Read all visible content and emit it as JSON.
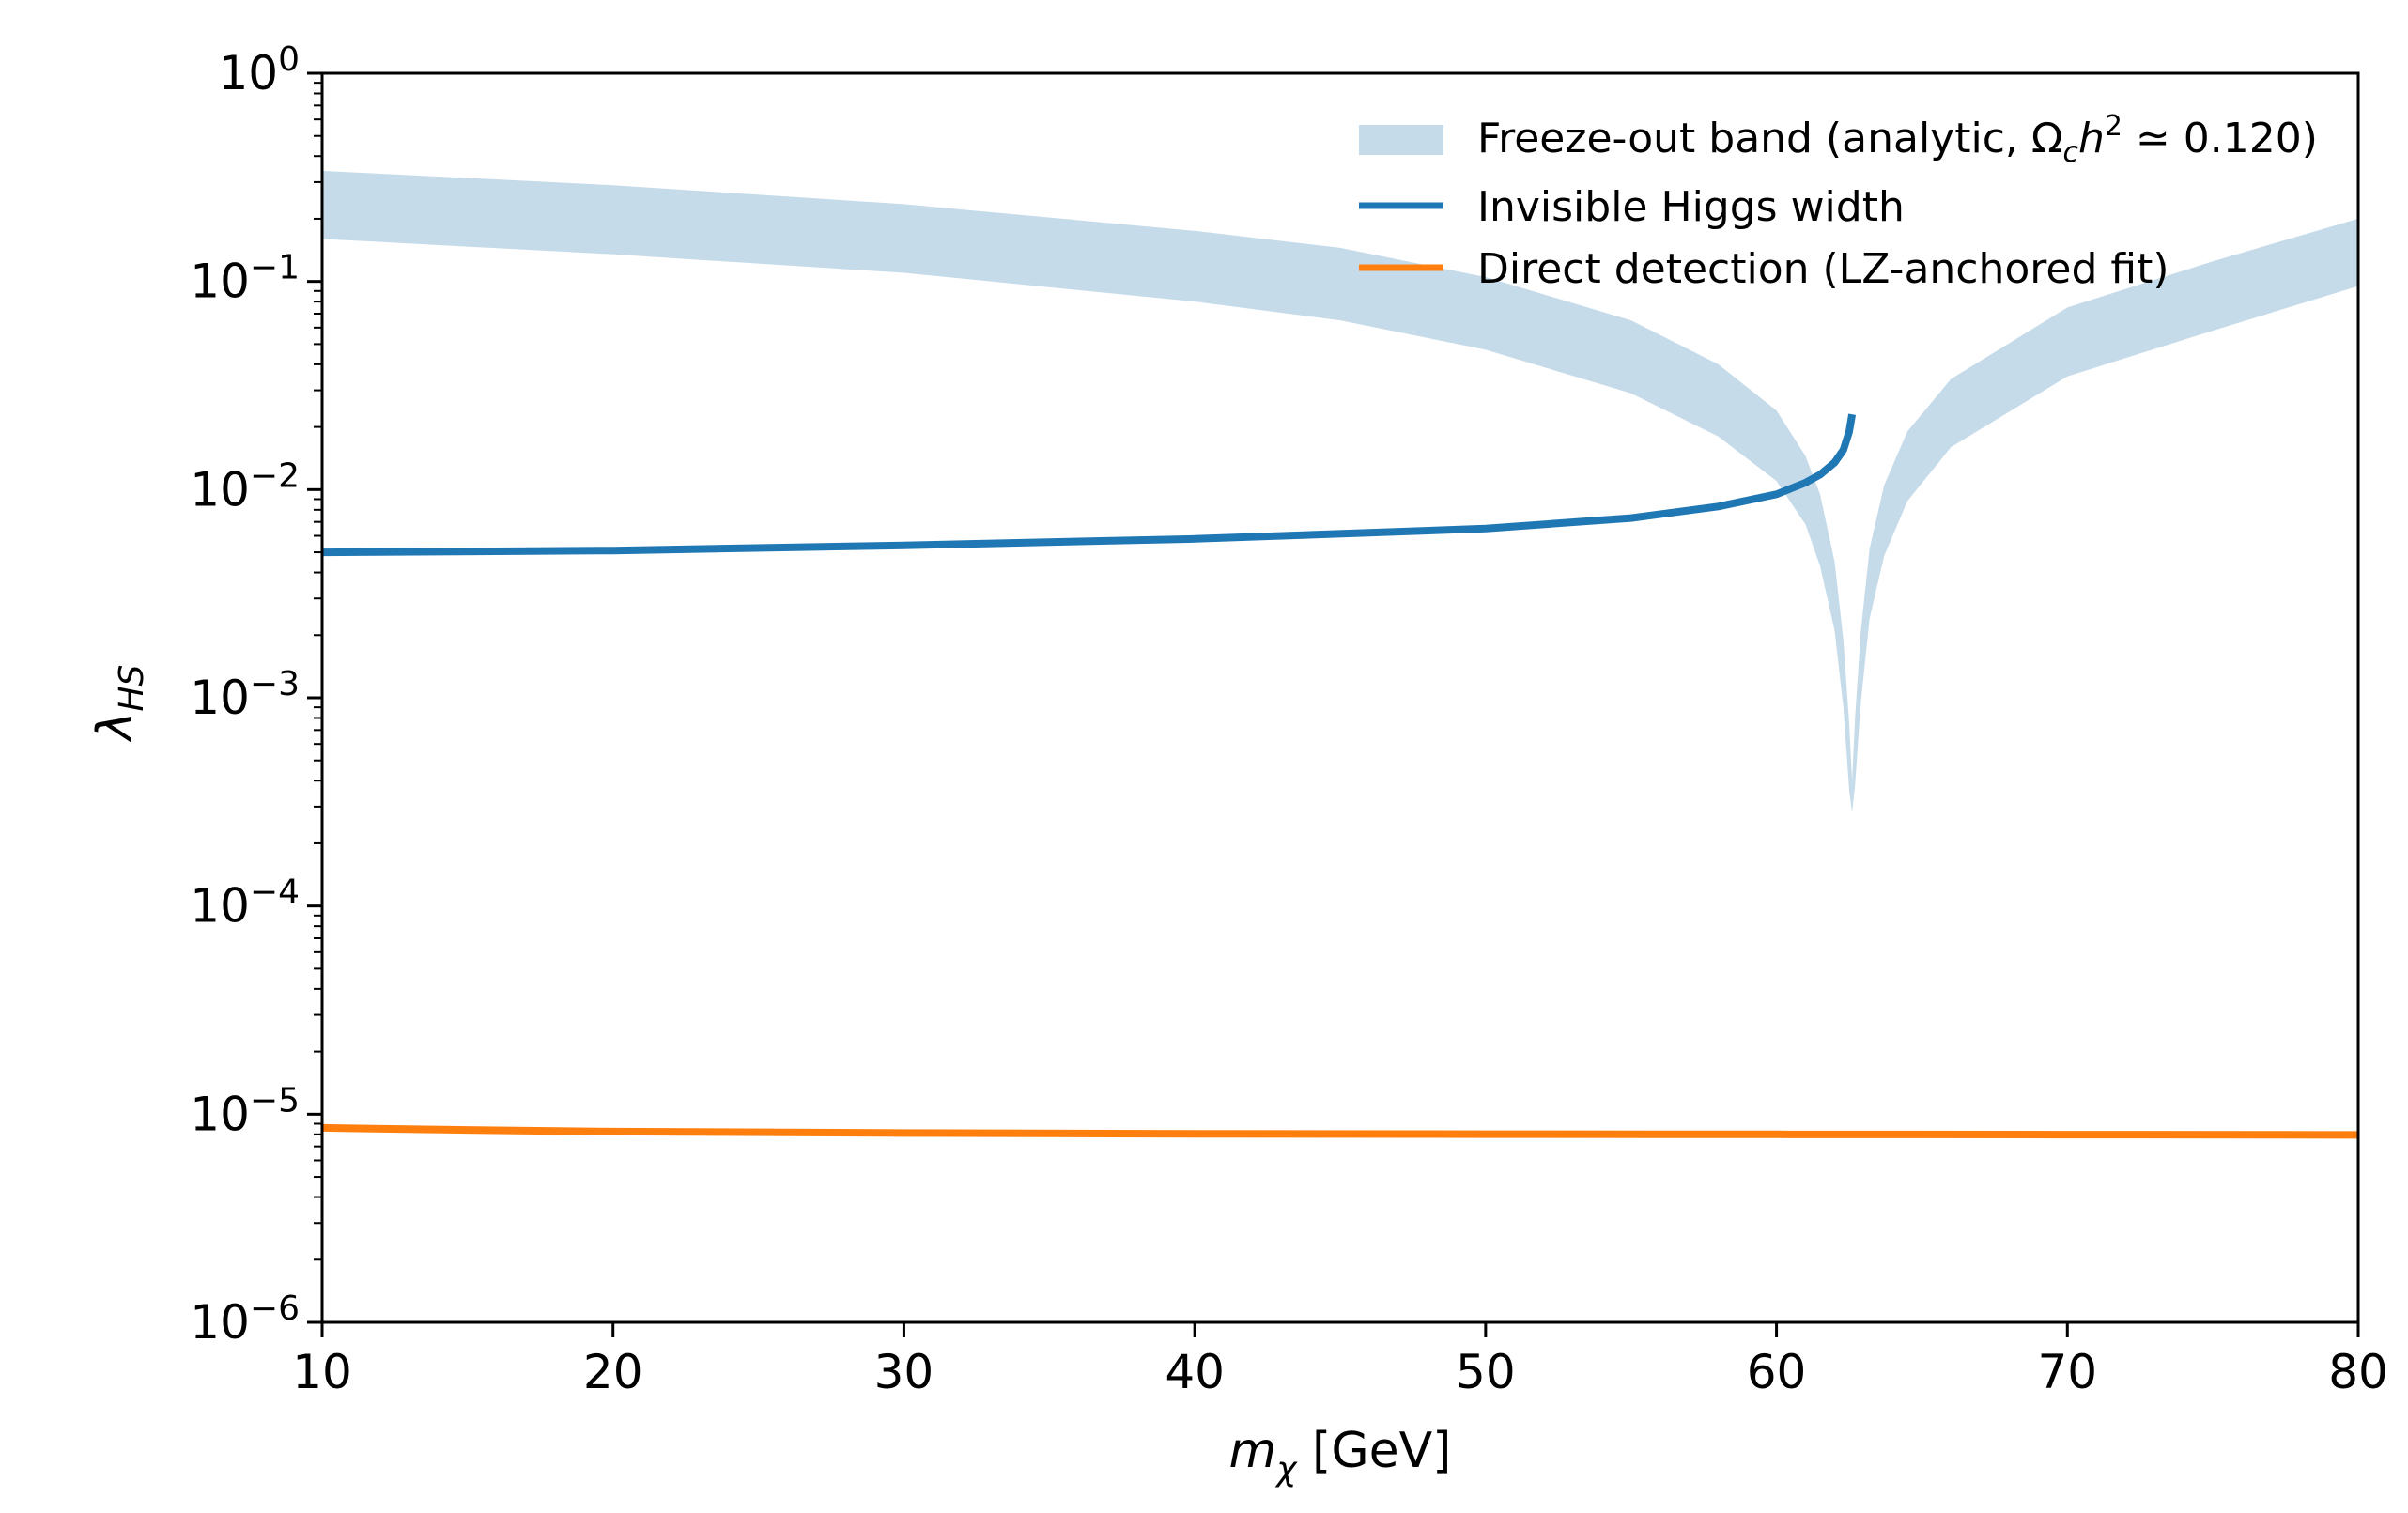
{
  "chart_data": {
    "type": "line",
    "xlabel": "m_χ [GeV]",
    "xlabel_base": "m",
    "xlabel_sub": "χ",
    "xlabel_unit": "[GeV]",
    "ylabel": "λ_HS",
    "ylabel_base": "λ",
    "ylabel_sub": "HS",
    "xlim": [
      10,
      80
    ],
    "ylim": [
      1e-06,
      1
    ],
    "yscale": "log",
    "grid": false,
    "legend_position": "top-right",
    "x_ticks": [
      10,
      20,
      30,
      40,
      50,
      60,
      70,
      80
    ],
    "y_ticks": [
      {
        "value": 1,
        "base": "10",
        "exp": "0"
      },
      {
        "value": 0.1,
        "base": "10",
        "exp": "−1"
      },
      {
        "value": 0.01,
        "base": "10",
        "exp": "−2"
      },
      {
        "value": 0.001,
        "base": "10",
        "exp": "−3"
      },
      {
        "value": 0.0001,
        "base": "10",
        "exp": "−4"
      },
      {
        "value": 1e-05,
        "base": "10",
        "exp": "−5"
      },
      {
        "value": 1e-06,
        "base": "10",
        "exp": "−6"
      }
    ],
    "series": [
      {
        "name": "Freeze-out band (analytic, Ω_c h^2 ≃ 0.120)",
        "kind": "band",
        "color": "#c6dbea",
        "resonance_x": 62.6,
        "x": [
          10,
          20,
          30,
          40,
          45,
          50,
          55,
          58,
          60,
          61,
          61.5,
          62,
          62.3,
          62.5,
          62.6,
          62.7,
          62.9,
          63.2,
          63.7,
          64.5,
          66,
          70,
          75,
          80
        ],
        "upper": [
          0.34,
          0.29,
          0.235,
          0.175,
          0.145,
          0.105,
          0.065,
          0.04,
          0.024,
          0.0145,
          0.0095,
          0.0045,
          0.0019,
          0.00075,
          0.0004,
          0.0008,
          0.0021,
          0.0052,
          0.0105,
          0.019,
          0.034,
          0.075,
          0.125,
          0.2
        ],
        "lower": [
          0.16,
          0.135,
          0.11,
          0.08,
          0.065,
          0.047,
          0.029,
          0.018,
          0.011,
          0.0068,
          0.0043,
          0.0021,
          0.0009,
          0.00036,
          0.00028,
          0.00038,
          0.00095,
          0.0024,
          0.0048,
          0.0088,
          0.016,
          0.035,
          0.058,
          0.095
        ]
      },
      {
        "name": "Invisible Higgs width",
        "kind": "line",
        "color": "#1f77b4",
        "x": [
          10,
          20,
          30,
          40,
          50,
          55,
          58,
          60,
          61,
          61.5,
          62,
          62.3,
          62.5,
          62.6
        ],
        "values": [
          0.005,
          0.0051,
          0.0054,
          0.0058,
          0.0065,
          0.0073,
          0.0083,
          0.0095,
          0.0108,
          0.0118,
          0.0135,
          0.0155,
          0.019,
          0.023
        ]
      },
      {
        "name": "Direct detection (LZ-anchored fit)",
        "kind": "line",
        "color": "#ff7f0e",
        "x": [
          10,
          15,
          20,
          30,
          40,
          50,
          60,
          70,
          80
        ],
        "values": [
          8.6e-06,
          8.4e-06,
          8.25e-06,
          8.12e-06,
          8.05e-06,
          8.02e-06,
          8e-06,
          7.98e-06,
          7.95e-06
        ]
      }
    ],
    "legend": [
      {
        "kind": "band",
        "color": "#c6dbea",
        "text_prefix": "Freeze-out band (analytic, ",
        "omega": "Ω",
        "omega_sub": "c",
        "h": "h",
        "h_sup": "2",
        "text_suffix": " ≃ 0.120)"
      },
      {
        "kind": "line",
        "color": "#1f77b4",
        "text": "Invisible Higgs width"
      },
      {
        "kind": "line",
        "color": "#ff7f0e",
        "text": "Direct detection (LZ-anchored fit)"
      }
    ]
  }
}
